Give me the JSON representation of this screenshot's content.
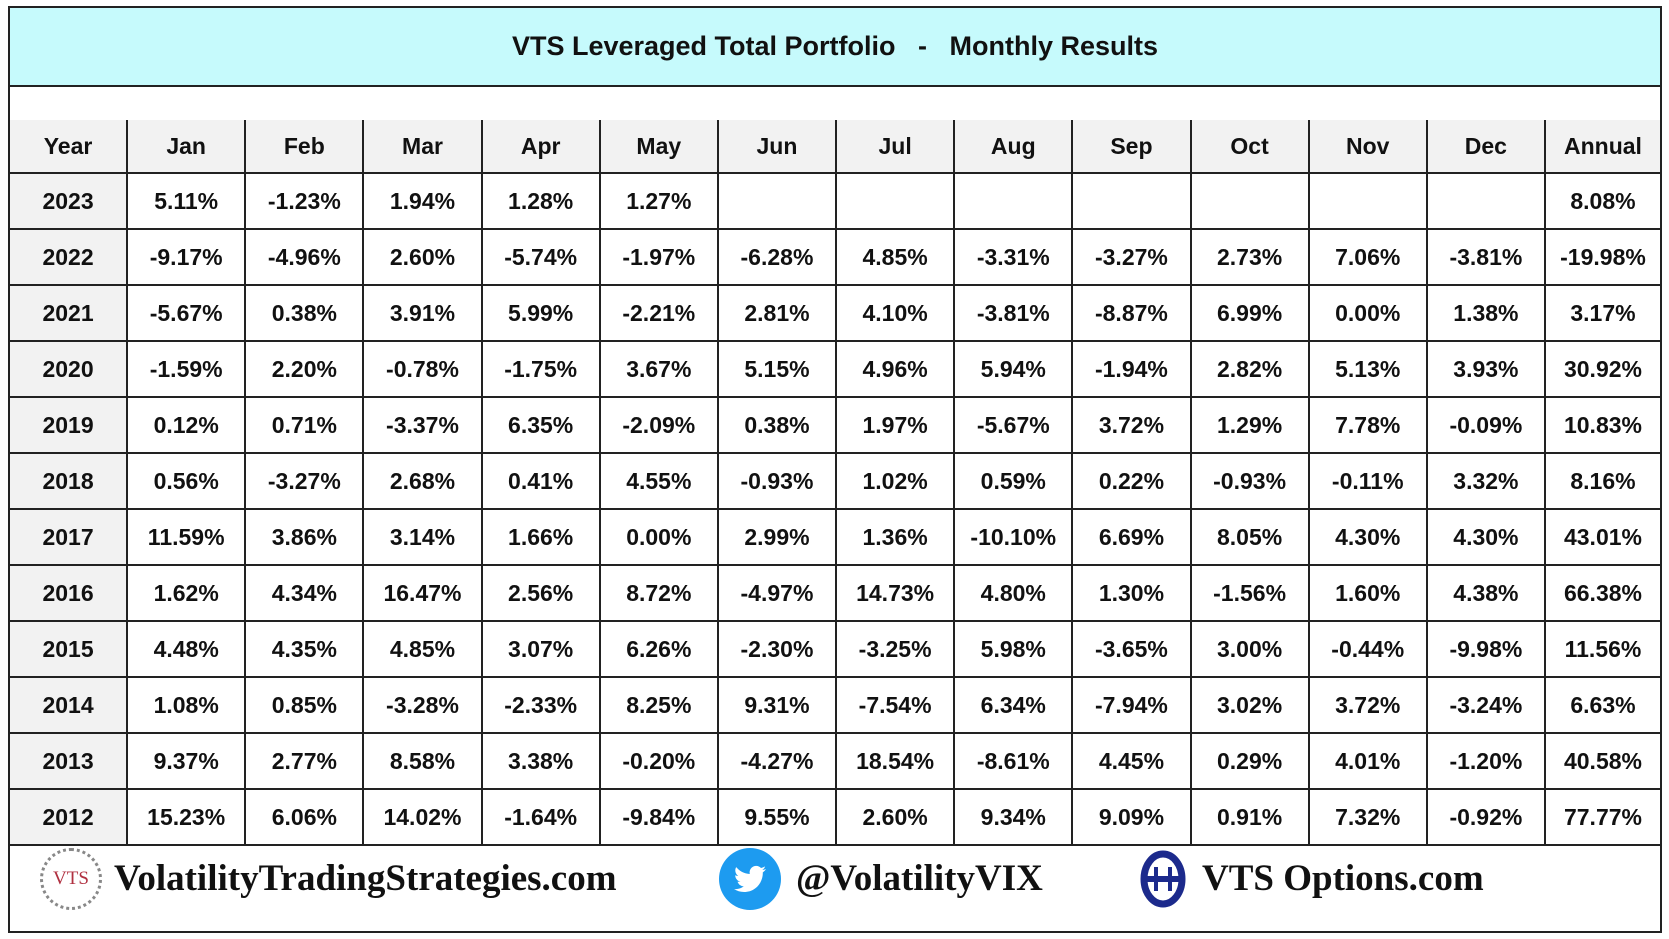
{
  "title": "VTS Leveraged Total Portfolio   -   Monthly Results",
  "table": {
    "headers": [
      "Year",
      "Jan",
      "Feb",
      "Mar",
      "Apr",
      "May",
      "Jun",
      "Jul",
      "Aug",
      "Sep",
      "Oct",
      "Nov",
      "Dec",
      "Annual"
    ],
    "rows": [
      [
        "2023",
        "5.11%",
        "-1.23%",
        "1.94%",
        "1.28%",
        "1.27%",
        "",
        "",
        "",
        "",
        "",
        "",
        "",
        "8.08%"
      ],
      [
        "2022",
        "-9.17%",
        "-4.96%",
        "2.60%",
        "-5.74%",
        "-1.97%",
        "-6.28%",
        "4.85%",
        "-3.31%",
        "-3.27%",
        "2.73%",
        "7.06%",
        "-3.81%",
        "-19.98%"
      ],
      [
        "2021",
        "-5.67%",
        "0.38%",
        "3.91%",
        "5.99%",
        "-2.21%",
        "2.81%",
        "4.10%",
        "-3.81%",
        "-8.87%",
        "6.99%",
        "0.00%",
        "1.38%",
        "3.17%"
      ],
      [
        "2020",
        "-1.59%",
        "2.20%",
        "-0.78%",
        "-1.75%",
        "3.67%",
        "5.15%",
        "4.96%",
        "5.94%",
        "-1.94%",
        "2.82%",
        "5.13%",
        "3.93%",
        "30.92%"
      ],
      [
        "2019",
        "0.12%",
        "0.71%",
        "-3.37%",
        "6.35%",
        "-2.09%",
        "0.38%",
        "1.97%",
        "-5.67%",
        "3.72%",
        "1.29%",
        "7.78%",
        "-0.09%",
        "10.83%"
      ],
      [
        "2018",
        "0.56%",
        "-3.27%",
        "2.68%",
        "0.41%",
        "4.55%",
        "-0.93%",
        "1.02%",
        "0.59%",
        "0.22%",
        "-0.93%",
        "-0.11%",
        "3.32%",
        "8.16%"
      ],
      [
        "2017",
        "11.59%",
        "3.86%",
        "3.14%",
        "1.66%",
        "0.00%",
        "2.99%",
        "1.36%",
        "-10.10%",
        "6.69%",
        "8.05%",
        "4.30%",
        "4.30%",
        "43.01%"
      ],
      [
        "2016",
        "1.62%",
        "4.34%",
        "16.47%",
        "2.56%",
        "8.72%",
        "-4.97%",
        "14.73%",
        "4.80%",
        "1.30%",
        "-1.56%",
        "1.60%",
        "4.38%",
        "66.38%"
      ],
      [
        "2015",
        "4.48%",
        "4.35%",
        "4.85%",
        "3.07%",
        "6.26%",
        "-2.30%",
        "-3.25%",
        "5.98%",
        "-3.65%",
        "3.00%",
        "-0.44%",
        "-9.98%",
        "11.56%"
      ],
      [
        "2014",
        "1.08%",
        "0.85%",
        "-3.28%",
        "-2.33%",
        "8.25%",
        "9.31%",
        "-7.54%",
        "6.34%",
        "-7.94%",
        "3.02%",
        "3.72%",
        "-3.24%",
        "6.63%"
      ],
      [
        "2013",
        "9.37%",
        "2.77%",
        "8.58%",
        "3.38%",
        "-0.20%",
        "-4.27%",
        "18.54%",
        "-8.61%",
        "4.45%",
        "0.29%",
        "4.01%",
        "-1.20%",
        "40.58%"
      ],
      [
        "2012",
        "15.23%",
        "6.06%",
        "14.02%",
        "-1.64%",
        "-9.84%",
        "9.55%",
        "2.60%",
        "9.34%",
        "9.09%",
        "0.91%",
        "7.32%",
        "-0.92%",
        "77.77%"
      ]
    ]
  },
  "footer": {
    "vts_logo_text": "VTS",
    "website": "VolatilityTradingStrategies.com",
    "twitter_handle": "@VolatilityVIX",
    "options_site": "VTS Options.com"
  },
  "colors": {
    "title_background": "#c6fafc",
    "header_background": "#f2f2f2",
    "twitter_blue": "#1d9bf0",
    "theta_navy": "#1c2a8c",
    "vts_red": "#b03040"
  }
}
